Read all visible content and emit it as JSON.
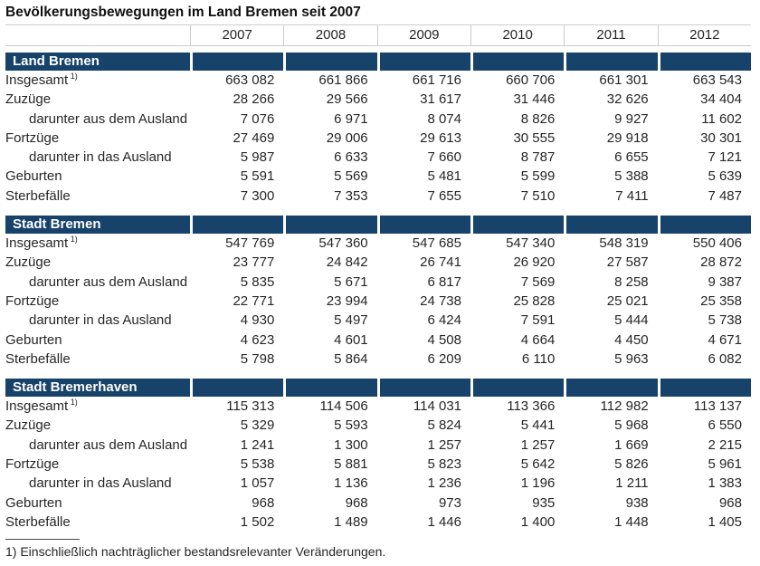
{
  "title": "Bevölkerungsbewegungen im Land Bremen seit 2007",
  "years": [
    "2007",
    "2008",
    "2009",
    "2010",
    "2011",
    "2012"
  ],
  "footnote": "1) Einschließlich nachträglicher bestandsrelevanter Veränderungen.",
  "colors": {
    "section_bar": "#17426a",
    "header_border": "#cccccc",
    "text": "#262626",
    "bar_text": "#ffffff"
  },
  "sections": [
    {
      "name": "Land Bremen",
      "rows": [
        {
          "label": "Insgesamt",
          "sup": "1)",
          "indent": false,
          "values": [
            "663 082",
            "661 866",
            "661 716",
            "660 706",
            "661 301",
            "663 543"
          ]
        },
        {
          "label": "Zuzüge",
          "sup": "",
          "indent": false,
          "values": [
            "28 266",
            "29 566",
            "31 617",
            "31 446",
            "32 626",
            "34 404"
          ]
        },
        {
          "label": "darunter aus dem Ausland",
          "sup": "",
          "indent": true,
          "values": [
            "7 076",
            "6 971",
            "8 074",
            "8 826",
            "9 927",
            "11 602"
          ]
        },
        {
          "label": "Fortzüge",
          "sup": "",
          "indent": false,
          "values": [
            "27 469",
            "29 006",
            "29 613",
            "30 555",
            "29 918",
            "30 301"
          ]
        },
        {
          "label": "darunter in das Ausland",
          "sup": "",
          "indent": true,
          "values": [
            "5 987",
            "6 633",
            "7 660",
            "8 787",
            "6 655",
            "7 121"
          ]
        },
        {
          "label": "Geburten",
          "sup": "",
          "indent": false,
          "values": [
            "5 591",
            "5 569",
            "5 481",
            "5 599",
            "5 388",
            "5 639"
          ]
        },
        {
          "label": "Sterbefälle",
          "sup": "",
          "indent": false,
          "values": [
            "7 300",
            "7 353",
            "7 655",
            "7 510",
            "7 411",
            "7 487"
          ]
        }
      ]
    },
    {
      "name": "Stadt Bremen",
      "rows": [
        {
          "label": "Insgesamt",
          "sup": "1)",
          "indent": false,
          "values": [
            "547 769",
            "547 360",
            "547 685",
            "547 340",
            "548 319",
            "550 406"
          ]
        },
        {
          "label": "Zuzüge",
          "sup": "",
          "indent": false,
          "values": [
            "23 777",
            "24 842",
            "26 741",
            "26 920",
            "27 587",
            "28 872"
          ]
        },
        {
          "label": "darunter aus dem Ausland",
          "sup": "",
          "indent": true,
          "values": [
            "5 835",
            "5 671",
            "6 817",
            "7 569",
            "8 258",
            "9 387"
          ]
        },
        {
          "label": "Fortzüge",
          "sup": "",
          "indent": false,
          "values": [
            "22 771",
            "23 994",
            "24 738",
            "25 828",
            "25 021",
            "25 358"
          ]
        },
        {
          "label": "darunter in das Ausland",
          "sup": "",
          "indent": true,
          "values": [
            "4 930",
            "5 497",
            "6 424",
            "7 591",
            "5 444",
            "5 738"
          ]
        },
        {
          "label": "Geburten",
          "sup": "",
          "indent": false,
          "values": [
            "4 623",
            "4 601",
            "4 508",
            "4 664",
            "4 450",
            "4 671"
          ]
        },
        {
          "label": "Sterbefälle",
          "sup": "",
          "indent": false,
          "values": [
            "5 798",
            "5 864",
            "6 209",
            "6 110",
            "5 963",
            "6 082"
          ]
        }
      ]
    },
    {
      "name": "Stadt Bremerhaven",
      "rows": [
        {
          "label": "Insgesamt",
          "sup": "1)",
          "indent": false,
          "values": [
            "115 313",
            "114 506",
            "114 031",
            "113 366",
            "112 982",
            "113 137"
          ]
        },
        {
          "label": "Zuzüge",
          "sup": "",
          "indent": false,
          "values": [
            "5 329",
            "5 593",
            "5 824",
            "5 441",
            "5 968",
            "6 550"
          ]
        },
        {
          "label": "darunter aus dem Ausland",
          "sup": "",
          "indent": true,
          "values": [
            "1 241",
            "1 300",
            "1 257",
            "1 257",
            "1 669",
            "2 215"
          ]
        },
        {
          "label": "Fortzüge",
          "sup": "",
          "indent": false,
          "values": [
            "5 538",
            "5 881",
            "5 823",
            "5 642",
            "5 826",
            "5 961"
          ]
        },
        {
          "label": "darunter in das Ausland",
          "sup": "",
          "indent": true,
          "values": [
            "1 057",
            "1 136",
            "1 236",
            "1 196",
            "1 211",
            "1 383"
          ]
        },
        {
          "label": "Geburten",
          "sup": "",
          "indent": false,
          "values": [
            "968",
            "968",
            "973",
            "935",
            "938",
            "968"
          ]
        },
        {
          "label": "Sterbefälle",
          "sup": "",
          "indent": false,
          "values": [
            "1 502",
            "1 489",
            "1 446",
            "1 400",
            "1 448",
            "1 405"
          ]
        }
      ]
    }
  ]
}
